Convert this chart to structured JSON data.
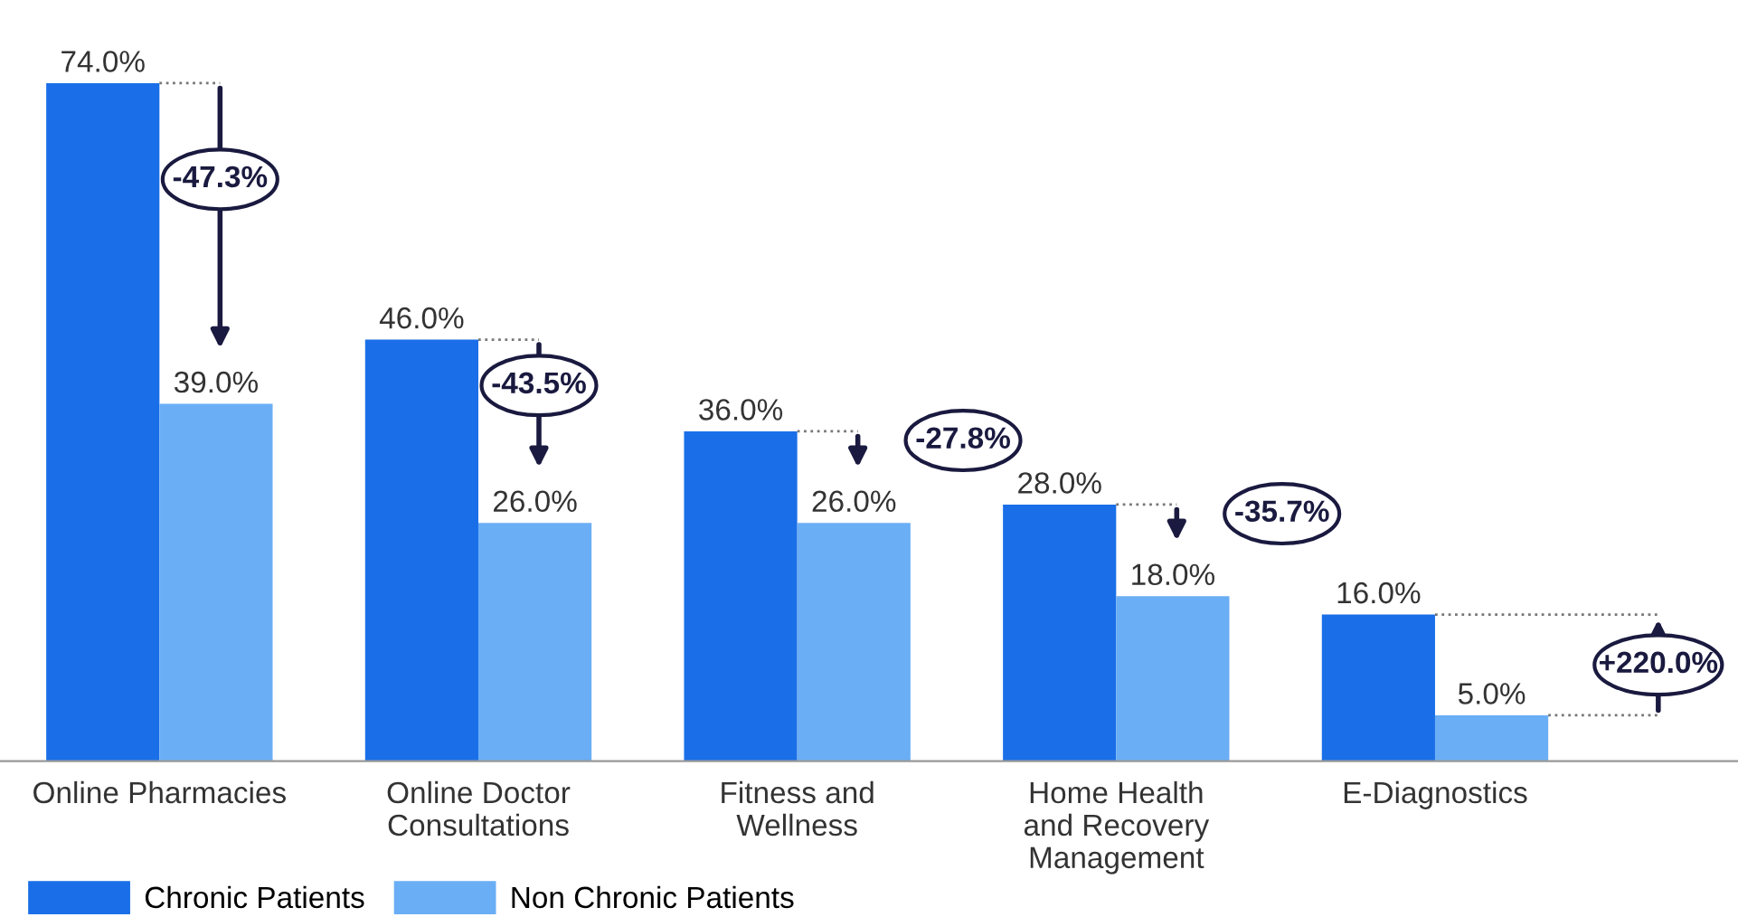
{
  "chart_data": {
    "type": "bar",
    "categories": [
      "Online Pharmacies",
      "Online Doctor\nConsultations",
      "Fitness and\nWellness",
      "Home Health\nand Recovery\nManagement",
      "E-Diagnostics"
    ],
    "series": [
      {
        "name": "Chronic Patients",
        "color": "#1a6fe8",
        "values": [
          74.0,
          46.0,
          36.0,
          28.0,
          16.0
        ],
        "value_labels": [
          "74.0%",
          "46.0%",
          "36.0%",
          "28.0%",
          "16.0%"
        ]
      },
      {
        "name": "Non Chronic Patients",
        "color": "#6aaef5",
        "values": [
          39.0,
          26.0,
          26.0,
          18.0,
          5.0
        ],
        "value_labels": [
          "39.0%",
          "26.0%",
          "26.0%",
          "18.0%",
          "5.0%"
        ]
      }
    ],
    "annotations": [
      "-47.3%",
      "-43.5%",
      "-27.8%",
      "-35.7%",
      "+220.0%"
    ],
    "legend": "bottom left",
    "grid": false
  }
}
